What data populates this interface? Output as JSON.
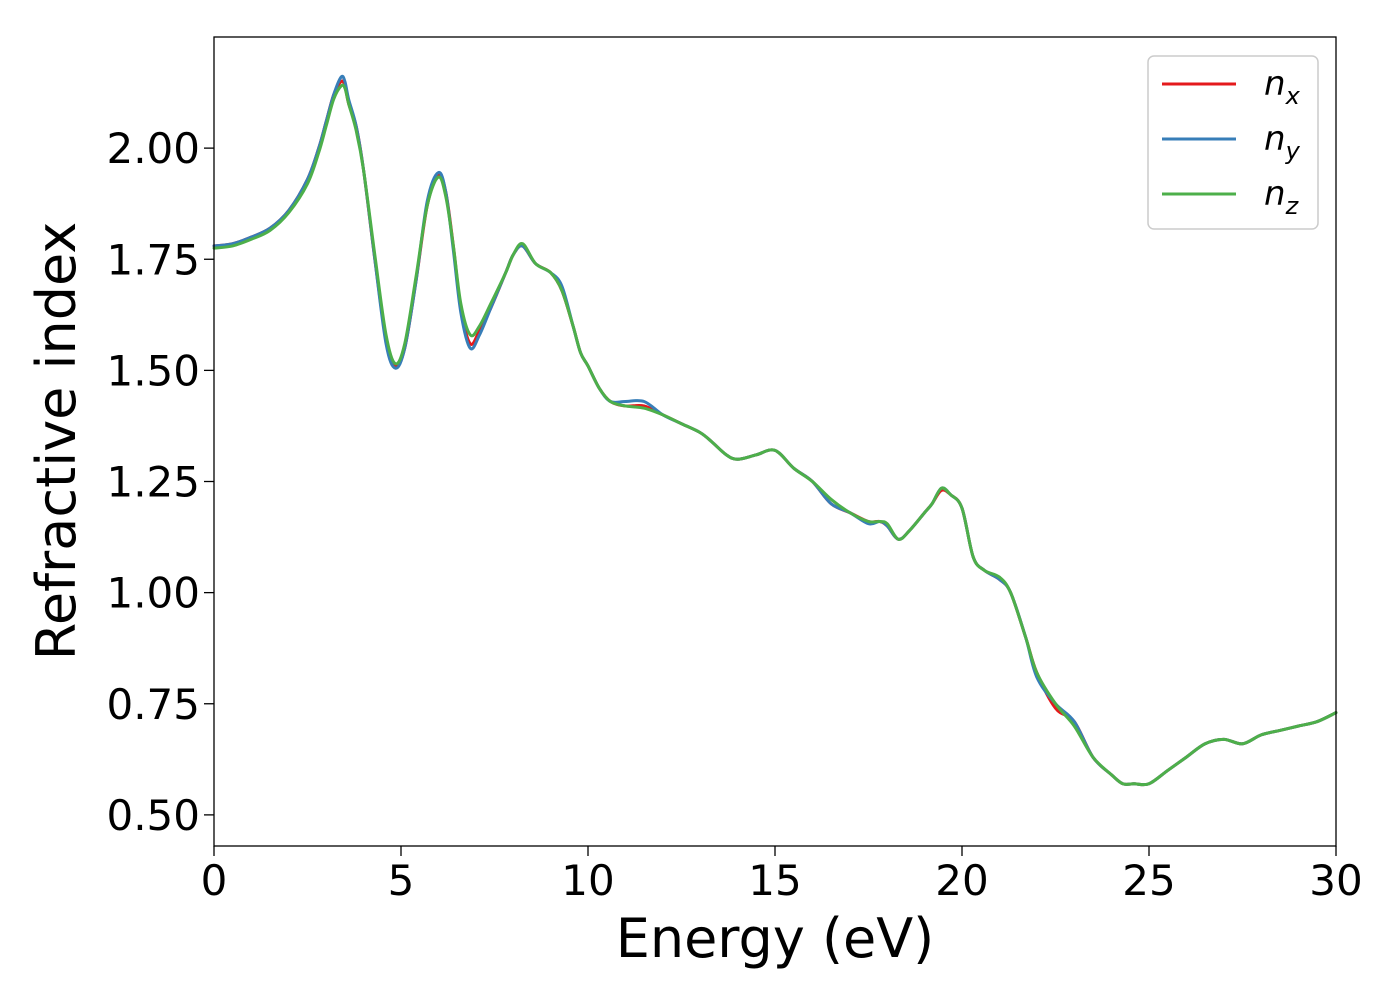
{
  "chart_data": {
    "type": "line",
    "xlabel": "Energy (eV)",
    "ylabel": "Refractive index",
    "xlim": [
      0,
      30
    ],
    "ylim": [
      0.43,
      2.25
    ],
    "x_ticks": [
      "0",
      "5",
      "10",
      "15",
      "20",
      "25",
      "30"
    ],
    "y_ticks": [
      "0.50",
      "0.75",
      "1.00",
      "1.25",
      "1.50",
      "1.75",
      "2.00"
    ],
    "grid": false,
    "legend_position": "top-right",
    "x": [
      0,
      0.5,
      1,
      1.5,
      2,
      2.5,
      2.8,
      3.0,
      3.2,
      3.4,
      3.5,
      3.6,
      3.8,
      4.0,
      4.3,
      4.6,
      4.85,
      5.1,
      5.4,
      5.7,
      6.0,
      6.2,
      6.4,
      6.6,
      6.85,
      7.1,
      7.4,
      7.8,
      8.0,
      8.25,
      8.6,
      9.0,
      9.3,
      9.6,
      9.8,
      10.0,
      10.3,
      10.6,
      11.0,
      11.5,
      12.0,
      12.5,
      13.0,
      13.3,
      13.7,
      14.0,
      14.5,
      15.0,
      15.5,
      16.0,
      16.5,
      17.0,
      17.5,
      17.8,
      18.0,
      18.3,
      18.6,
      19.0,
      19.2,
      19.45,
      19.7,
      20.0,
      20.3,
      20.6,
      21.0,
      21.3,
      21.7,
      22.0,
      22.5,
      23.0,
      23.5,
      24.0,
      24.3,
      24.6,
      25.0,
      25.5,
      26.0,
      26.5,
      27.0,
      27.5,
      28.0,
      28.5,
      29.0,
      29.5,
      30.0
    ],
    "series": [
      {
        "name": "n",
        "subscript": "x",
        "color": "#e41a1c",
        "values": [
          1.78,
          1.785,
          1.8,
          1.82,
          1.86,
          1.93,
          2.0,
          2.06,
          2.12,
          2.15,
          2.14,
          2.1,
          2.05,
          1.95,
          1.75,
          1.57,
          1.51,
          1.55,
          1.7,
          1.87,
          1.94,
          1.9,
          1.78,
          1.64,
          1.56,
          1.59,
          1.64,
          1.72,
          1.76,
          1.78,
          1.74,
          1.72,
          1.68,
          1.6,
          1.54,
          1.51,
          1.46,
          1.43,
          1.42,
          1.42,
          1.4,
          1.38,
          1.36,
          1.34,
          1.31,
          1.3,
          1.31,
          1.32,
          1.28,
          1.25,
          1.2,
          1.18,
          1.16,
          1.16,
          1.15,
          1.12,
          1.14,
          1.18,
          1.2,
          1.23,
          1.22,
          1.19,
          1.08,
          1.05,
          1.03,
          1.0,
          0.9,
          0.82,
          0.74,
          0.71,
          0.63,
          0.59,
          0.57,
          0.57,
          0.57,
          0.6,
          0.63,
          0.66,
          0.67,
          0.66,
          0.68,
          0.69,
          0.7,
          0.71,
          0.73
        ]
      },
      {
        "name": "n",
        "subscript": "y",
        "color": "#377eb8",
        "values": [
          1.78,
          1.785,
          1.8,
          1.82,
          1.86,
          1.93,
          2.0,
          2.06,
          2.12,
          2.16,
          2.15,
          2.11,
          2.05,
          1.95,
          1.75,
          1.56,
          1.505,
          1.55,
          1.7,
          1.88,
          1.945,
          1.9,
          1.77,
          1.63,
          1.55,
          1.58,
          1.64,
          1.72,
          1.76,
          1.78,
          1.74,
          1.72,
          1.69,
          1.6,
          1.54,
          1.51,
          1.46,
          1.43,
          1.43,
          1.43,
          1.4,
          1.38,
          1.36,
          1.34,
          1.31,
          1.3,
          1.31,
          1.32,
          1.28,
          1.25,
          1.2,
          1.18,
          1.155,
          1.16,
          1.15,
          1.12,
          1.14,
          1.18,
          1.2,
          1.235,
          1.22,
          1.19,
          1.08,
          1.05,
          1.03,
          1.0,
          0.9,
          0.81,
          0.75,
          0.71,
          0.63,
          0.59,
          0.57,
          0.57,
          0.57,
          0.6,
          0.63,
          0.66,
          0.67,
          0.66,
          0.68,
          0.69,
          0.7,
          0.71,
          0.73
        ]
      },
      {
        "name": "n",
        "subscript": "z",
        "color": "#4daf4a",
        "values": [
          1.775,
          1.78,
          1.795,
          1.815,
          1.855,
          1.92,
          1.99,
          2.05,
          2.11,
          2.14,
          2.135,
          2.1,
          2.04,
          1.95,
          1.76,
          1.58,
          1.515,
          1.56,
          1.71,
          1.87,
          1.935,
          1.89,
          1.78,
          1.65,
          1.58,
          1.6,
          1.65,
          1.72,
          1.76,
          1.785,
          1.74,
          1.72,
          1.68,
          1.6,
          1.54,
          1.51,
          1.46,
          1.43,
          1.42,
          1.415,
          1.4,
          1.38,
          1.36,
          1.34,
          1.31,
          1.3,
          1.31,
          1.32,
          1.28,
          1.25,
          1.21,
          1.18,
          1.16,
          1.16,
          1.155,
          1.12,
          1.14,
          1.18,
          1.2,
          1.235,
          1.22,
          1.19,
          1.08,
          1.05,
          1.035,
          1.0,
          0.9,
          0.82,
          0.75,
          0.7,
          0.63,
          0.59,
          0.57,
          0.57,
          0.57,
          0.6,
          0.63,
          0.66,
          0.67,
          0.66,
          0.68,
          0.69,
          0.7,
          0.71,
          0.73
        ]
      }
    ]
  }
}
